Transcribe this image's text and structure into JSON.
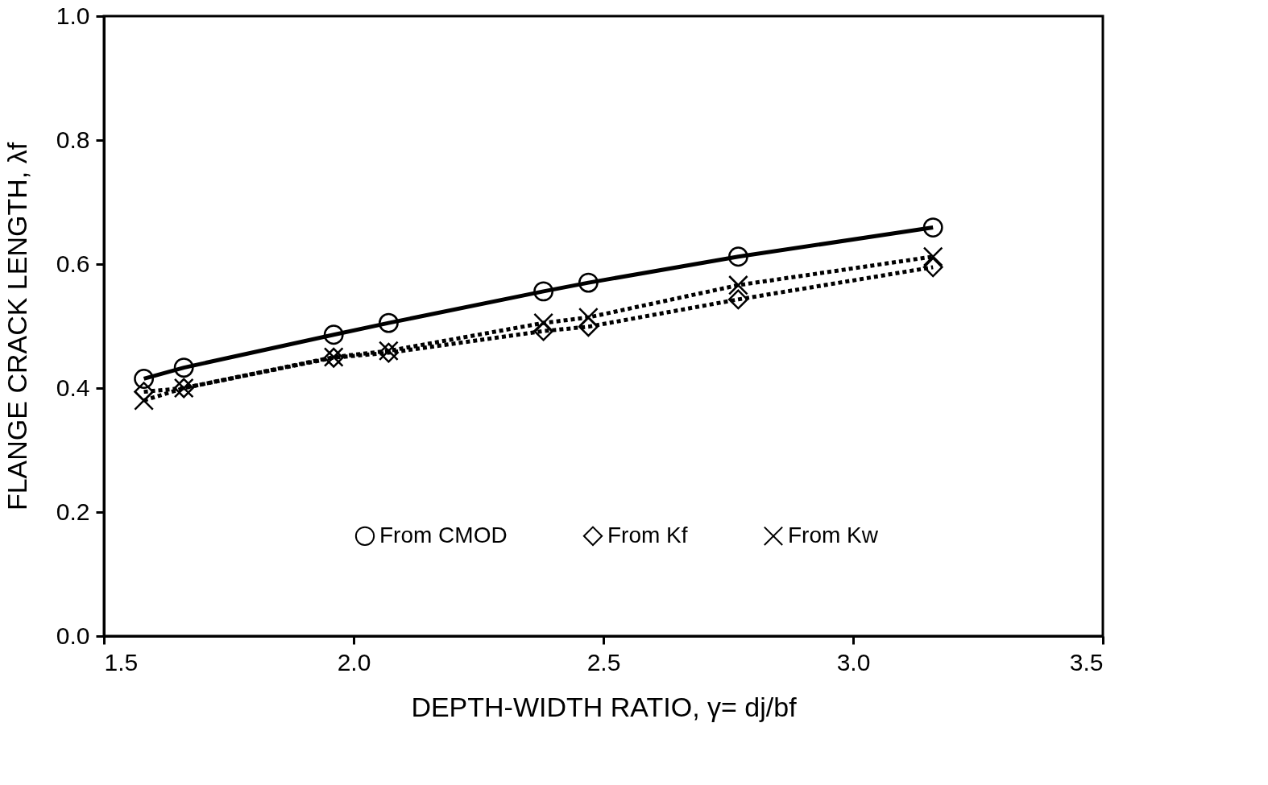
{
  "chart_data": {
    "type": "line",
    "xlabel": "DEPTH-WIDTH RATIO, γ= dj/bf",
    "ylabel": "FLANGE CRACK LENGTH, λf",
    "x": [
      1.58,
      1.66,
      1.96,
      2.07,
      2.38,
      2.47,
      2.77,
      3.16
    ],
    "series": [
      {
        "name": "From CMOD",
        "color": "#000000",
        "marker": "circle",
        "line_style": "solid",
        "values": [
          0.415,
          0.433,
          0.486,
          0.505,
          0.556,
          0.57,
          0.612,
          0.659
        ]
      },
      {
        "name": "From Kf",
        "color": "#000000",
        "marker": "diamond",
        "line_style": "dotted",
        "values": [
          0.394,
          0.4,
          0.449,
          0.457,
          0.492,
          0.499,
          0.543,
          0.595
        ]
      },
      {
        "name": "From Kw",
        "color": "#000000",
        "marker": "cross",
        "line_style": "dotted",
        "values": [
          0.38,
          0.4,
          0.45,
          0.46,
          0.505,
          0.514,
          0.566,
          0.612
        ]
      }
    ],
    "xlim": [
      1.5,
      3.5
    ],
    "xticks": [
      1.5,
      {
        "value": 2,
        "label": "2.0"
      },
      2.5,
      {
        "value": 3,
        "label": "3.0"
      },
      3.5
    ],
    "ylim": [
      0,
      1
    ],
    "yticks": [
      {
        "value": 0,
        "label": "0.0"
      },
      0.2,
      0.4,
      0.6,
      0.8,
      {
        "value": 1,
        "label": "1.0"
      }
    ],
    "grid": false,
    "legend": "bottom"
  }
}
